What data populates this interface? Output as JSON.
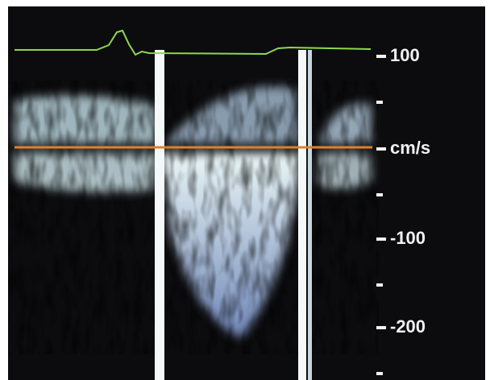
{
  "scale": {
    "labels": [
      "100",
      "cm/s",
      "-100",
      "-200"
    ]
  }
}
